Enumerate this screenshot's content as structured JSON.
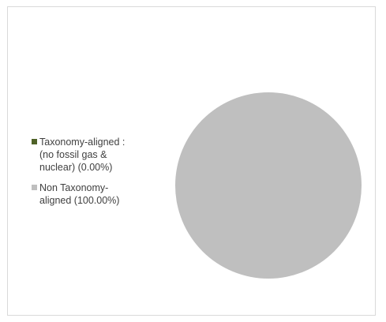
{
  "chart_data": {
    "type": "pie",
    "title": "",
    "slices": [
      {
        "label": "Taxonomy-aligned :\n(no fossil gas &\nnuclear) (0.00%)",
        "value": 0.0,
        "color": "#4f6228"
      },
      {
        "label": "Non Taxonomy-\naligned (100.00%)",
        "value": 100.0,
        "color": "#bfbfbf"
      }
    ],
    "legend_position": "left"
  }
}
